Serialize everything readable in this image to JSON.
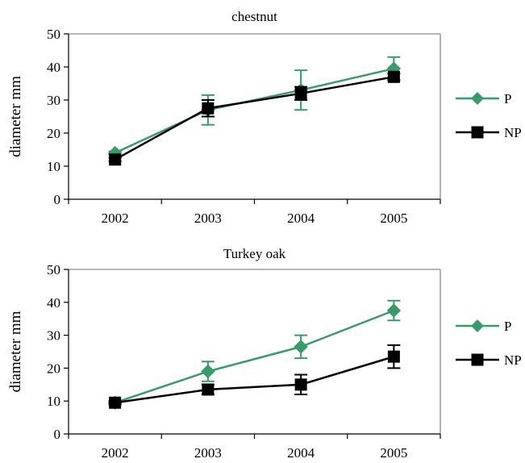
{
  "chart_data": [
    {
      "type": "line",
      "title": "chestnut",
      "xlabel": "",
      "ylabel": "diameter mm",
      "categories": [
        "2002",
        "2003",
        "2004",
        "2005"
      ],
      "ylim": [
        0,
        50
      ],
      "yticks": [
        0,
        10,
        20,
        30,
        40,
        50
      ],
      "grid": false,
      "legend_position": "right",
      "series": [
        {
          "name": "P",
          "color": "#3a9a6a",
          "marker": "diamond",
          "values": [
            14,
            27,
            33,
            39.5
          ],
          "error": [
            0.5,
            4.5,
            6,
            3.5
          ]
        },
        {
          "name": "NP",
          "color": "#000000",
          "marker": "square",
          "values": [
            12,
            27.5,
            32,
            37
          ],
          "error": [
            0.5,
            2.5,
            2,
            1
          ]
        }
      ]
    },
    {
      "type": "line",
      "title": "Turkey oak",
      "xlabel": "",
      "ylabel": "diameter mm",
      "categories": [
        "2002",
        "2003",
        "2004",
        "2005"
      ],
      "ylim": [
        0,
        50
      ],
      "yticks": [
        0,
        10,
        20,
        30,
        40,
        50
      ],
      "grid": false,
      "legend_position": "right",
      "series": [
        {
          "name": "P",
          "color": "#3a9a6a",
          "marker": "diamond",
          "values": [
            9.5,
            19,
            26.5,
            37.5
          ],
          "error": [
            0.5,
            3,
            3.5,
            3
          ]
        },
        {
          "name": "NP",
          "color": "#000000",
          "marker": "square",
          "values": [
            9.5,
            13.5,
            15,
            23.5
          ],
          "error": [
            0.5,
            1.5,
            3,
            3.5
          ]
        }
      ]
    }
  ]
}
